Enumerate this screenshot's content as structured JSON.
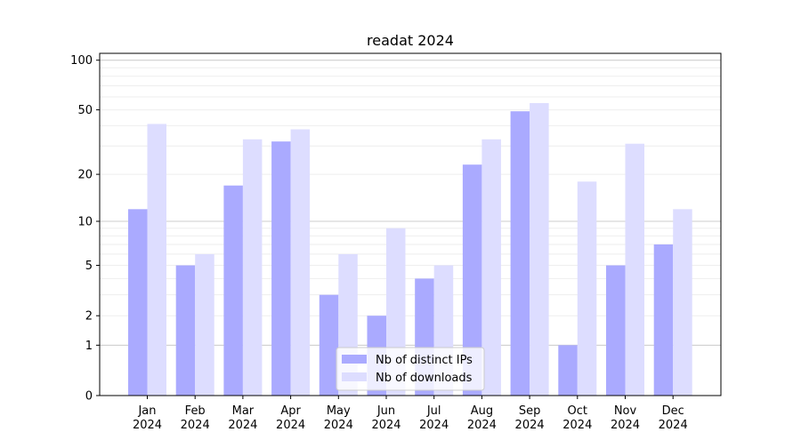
{
  "chart_data": {
    "type": "bar",
    "title": "readat 2024",
    "xlabel": "",
    "ylabel": "",
    "yscale": "log(1+y)",
    "ylim": [
      0,
      110
    ],
    "y_ticks": [
      0,
      1,
      2,
      5,
      10,
      20,
      50,
      100
    ],
    "grid": "horizontal",
    "legend_position": "lower-center",
    "categories": [
      {
        "month": "Jan",
        "year": "2024"
      },
      {
        "month": "Feb",
        "year": "2024"
      },
      {
        "month": "Mar",
        "year": "2024"
      },
      {
        "month": "Apr",
        "year": "2024"
      },
      {
        "month": "May",
        "year": "2024"
      },
      {
        "month": "Jun",
        "year": "2024"
      },
      {
        "month": "Jul",
        "year": "2024"
      },
      {
        "month": "Aug",
        "year": "2024"
      },
      {
        "month": "Sep",
        "year": "2024"
      },
      {
        "month": "Oct",
        "year": "2024"
      },
      {
        "month": "Nov",
        "year": "2024"
      },
      {
        "month": "Dec",
        "year": "2024"
      }
    ],
    "series": [
      {
        "name": "Nb of distinct IPs",
        "color": "#aaaaff",
        "values": [
          12,
          5,
          17,
          32,
          3,
          2,
          4,
          23,
          49,
          1,
          5,
          7
        ]
      },
      {
        "name": "Nb of downloads",
        "color": "#ddddff",
        "values": [
          41,
          6,
          33,
          38,
          6,
          9,
          5,
          33,
          55,
          18,
          31,
          12
        ]
      }
    ]
  }
}
